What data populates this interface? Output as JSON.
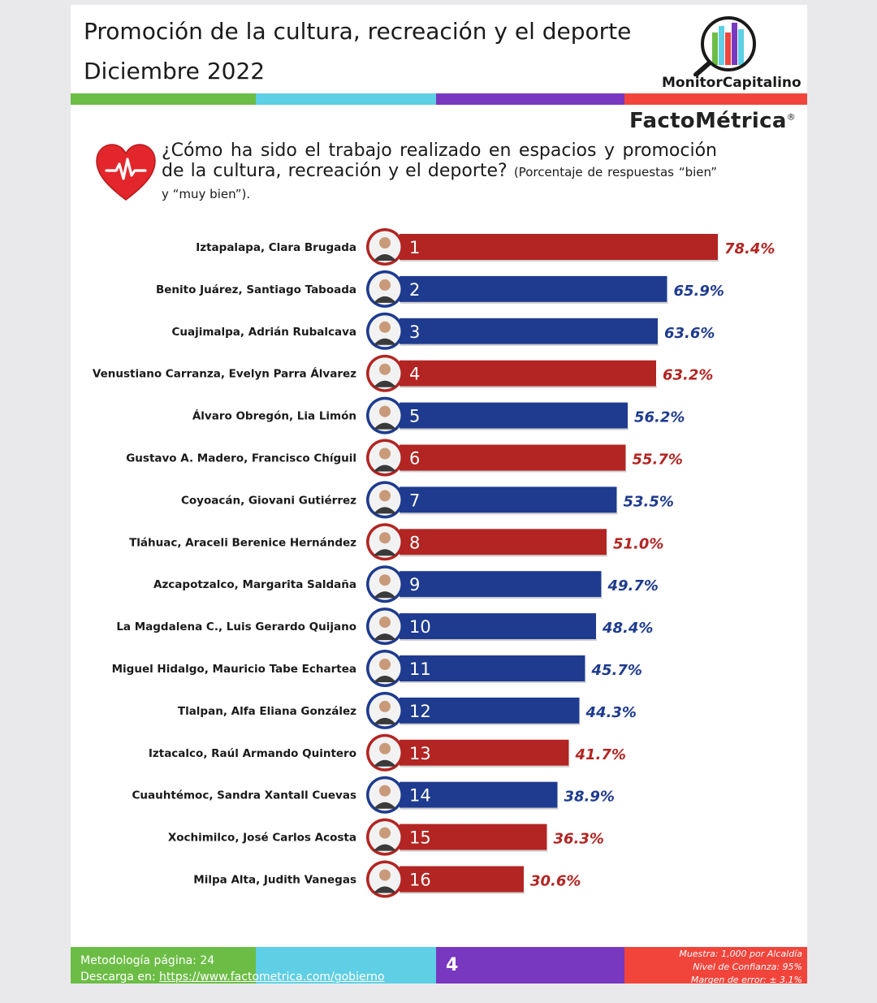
{
  "header": {
    "title_line1": "Promoción de la cultura, recreación y el deporte",
    "title_line2": "Diciembre 2022",
    "brand_monitor": "MonitorCapitalino",
    "brand_facto": "FactoMétrica",
    "brand_facto_mark": "®"
  },
  "colors": {
    "red": "#b22522",
    "blue": "#1e3b8f",
    "green": "#6cbd45",
    "cyan": "#5ecfe4",
    "purple": "#7838c0",
    "coral": "#f1453c"
  },
  "icons": {
    "heart": "heart-pulse-icon",
    "logo": "magnifier-bars-icon",
    "portrait": "person-portrait-icon"
  },
  "question": {
    "main": "¿Cómo ha sido el trabajo realizado en espacios y promoción de la cultura, recreación y el deporte?",
    "note": "(Porcentaje de respuestas “bien” y “muy bien”)."
  },
  "chart_data": {
    "type": "bar",
    "orientation": "horizontal",
    "unit": "%",
    "categories": [
      "Iztapalapa, Clara Brugada",
      "Benito Juárez, Santiago Taboada",
      "Cuajimalpa, Adrián Rubalcava",
      "Venustiano Carranza, Evelyn Parra Álvarez",
      "Álvaro Obregón, Lia Limón",
      "Gustavo A. Madero, Francisco Chíguil",
      "Coyoacán, Giovani Gutiérrez",
      "Tláhuac, Araceli Berenice Hernández",
      "Azcapotzalco, Margarita Saldaña",
      "La Magdalena C., Luis Gerardo Quijano",
      "Miguel Hidalgo, Mauricio Tabe Echartea",
      "Tlalpan, Alfa Eliana González",
      "Iztacalco, Raúl Armando Quintero",
      "Cuauhtémoc, Sandra Xantall Cuevas",
      "Xochimilco, José Carlos Acosta",
      "Milpa Alta, Judith Vanegas"
    ],
    "ranks": [
      "1",
      "2",
      "3",
      "4",
      "5",
      "6",
      "7",
      "8",
      "9",
      "10",
      "11",
      "12",
      "13",
      "14",
      "15",
      "16"
    ],
    "values": [
      78.4,
      65.9,
      63.6,
      63.2,
      56.2,
      55.7,
      53.5,
      51.0,
      49.7,
      48.4,
      45.7,
      44.3,
      41.7,
      38.9,
      36.3,
      30.6
    ],
    "value_labels": [
      "78.4%",
      "65.9%",
      "63.6%",
      "63.2%",
      "56.2%",
      "55.7%",
      "53.5%",
      "51.0%",
      "49.7%",
      "48.4%",
      "45.7%",
      "44.3%",
      "41.7%",
      "38.9%",
      "36.3%",
      "30.6%"
    ],
    "bar_colors": [
      "red",
      "blue",
      "blue",
      "red",
      "blue",
      "red",
      "blue",
      "red",
      "blue",
      "blue",
      "blue",
      "blue",
      "red",
      "blue",
      "red",
      "red"
    ],
    "xlim": [
      0,
      100
    ],
    "grid": false,
    "legend": "none"
  },
  "footer": {
    "methodology": "Metodología página: 24",
    "download_label": "Descarga en: ",
    "download_link": "https://www.factometrica.com/gobierno",
    "page_number": "4",
    "sample": "Muestra:  1,000 por Alcaldía",
    "confidence": "Nivel de Confianza: 95%",
    "margin": "Margen de error: ± 3.1%"
  }
}
